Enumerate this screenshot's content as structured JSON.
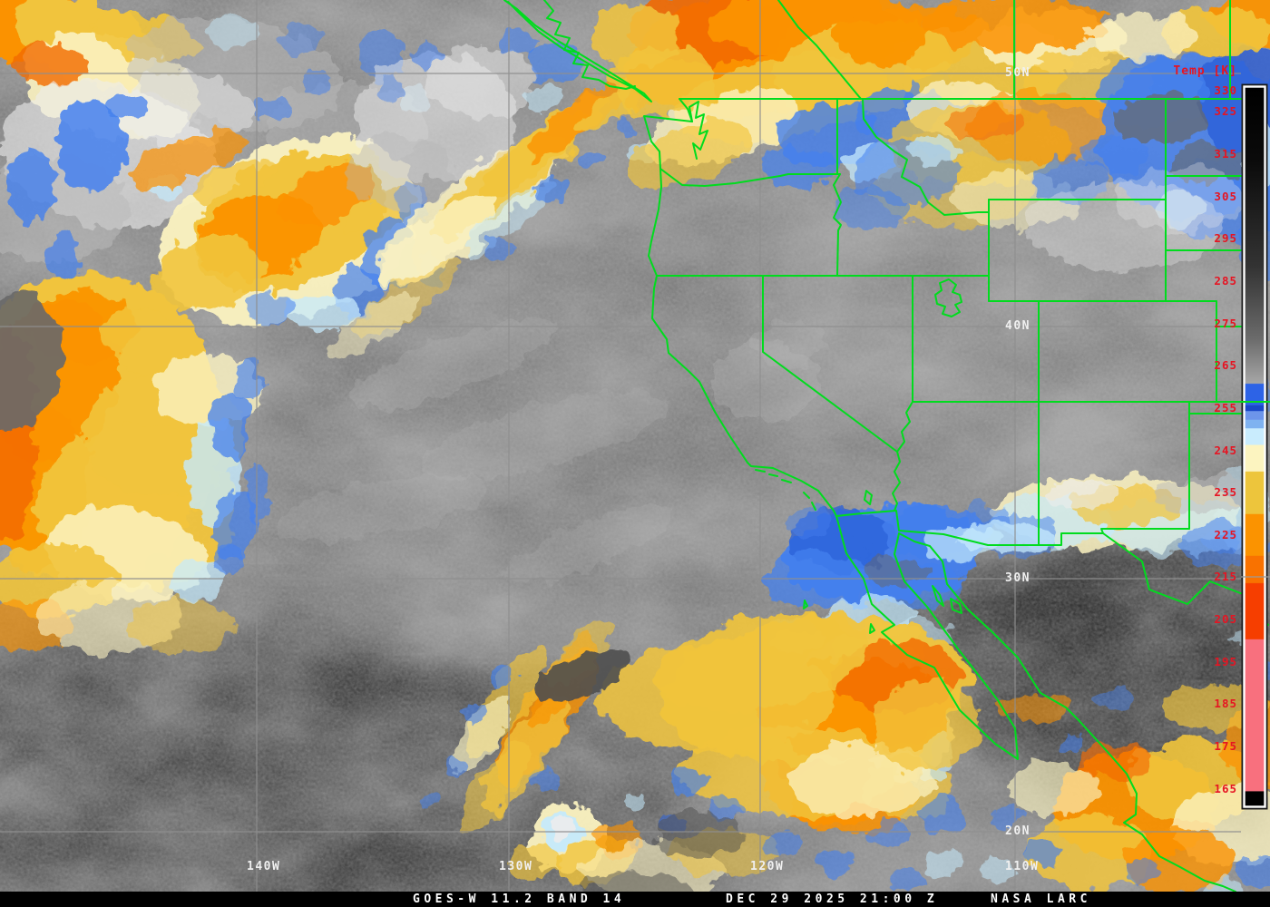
{
  "map": {
    "grid": {
      "latitude_labels": [
        "50N",
        "40N",
        "30N",
        "20N"
      ],
      "longitude_labels": [
        "140W",
        "130W",
        "120W",
        "110W"
      ]
    }
  },
  "scale": {
    "title": "Temp [K]",
    "ticks": [
      "330",
      "325",
      "315",
      "305",
      "295",
      "285",
      "275",
      "265",
      "255",
      "245",
      "235",
      "225",
      "215",
      "205",
      "195",
      "185",
      "175",
      "165"
    ],
    "palette": [
      [
        0,
        "#000000"
      ],
      [
        10,
        "#0a0a0a"
      ],
      [
        25,
        "#333333"
      ],
      [
        35,
        "#6b6b6b"
      ],
      [
        41.2,
        "#a6a6a6"
      ],
      [
        41.3,
        "#2d63e6"
      ],
      [
        44.2,
        "#2d63e6"
      ],
      [
        44.3,
        "#1a47c8"
      ],
      [
        45,
        "#1a47c8"
      ],
      [
        45.1,
        "#6d95ea"
      ],
      [
        46.2,
        "#6d95ea"
      ],
      [
        46.3,
        "#7fb2f0"
      ],
      [
        47.4,
        "#7fb2f0"
      ],
      [
        47.5,
        "#c9ecfd"
      ],
      [
        49.7,
        "#c9ecfd"
      ],
      [
        49.8,
        "#fcf4c0"
      ],
      [
        53.4,
        "#fcf4c0"
      ],
      [
        53.5,
        "#edc53c"
      ],
      [
        59.3,
        "#edc53c"
      ],
      [
        59.4,
        "#fb9300"
      ],
      [
        65.1,
        "#fb9300"
      ],
      [
        65.2,
        "#f97200"
      ],
      [
        68.9,
        "#f97200"
      ],
      [
        69,
        "#f63e00"
      ],
      [
        76.7,
        "#f63e00"
      ],
      [
        76.8,
        "#f8707e"
      ],
      [
        97.8,
        "#f8707e"
      ],
      [
        97.9,
        "#000000"
      ],
      [
        100,
        "#000000"
      ]
    ]
  },
  "footer": {
    "product": "GOES-W 11.2 BAND 14",
    "timestamp": "DEC 29 2025 21:00 Z",
    "credit": "NASA LARC"
  },
  "colors": {
    "boundary": "#00dc1e",
    "gridline": "#8f8f8f",
    "coordinate_text": "#f0f0f0",
    "scale_text": "#e61422",
    "background": "#000000"
  }
}
